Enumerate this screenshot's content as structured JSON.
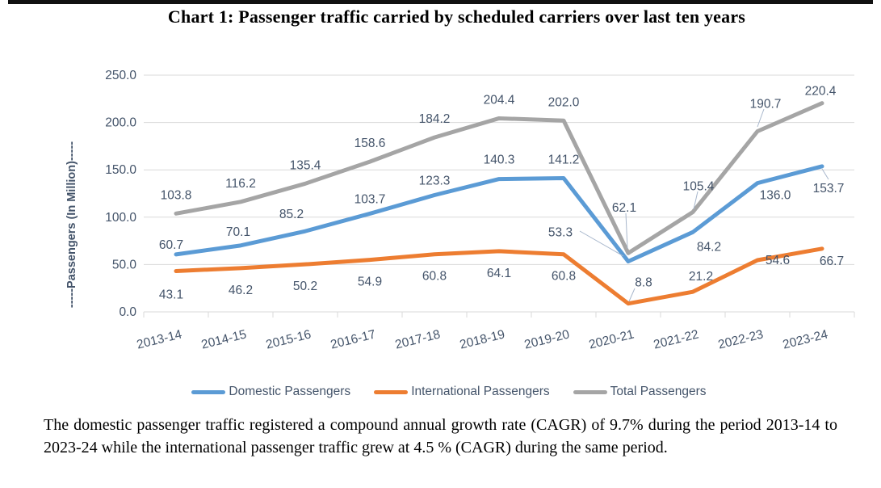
{
  "title": "Chart 1: Passenger traffic carried by scheduled carriers over last ten years",
  "chart_data": {
    "type": "line",
    "categories": [
      "2013-14",
      "2014-15",
      "2015-16",
      "2016-17",
      "2017-18",
      "2018-19",
      "2019-20",
      "2020-21",
      "2021-22",
      "2022-23",
      "2023-24"
    ],
    "series": [
      {
        "name": "Domestic Passengers",
        "color": "#5B9BD5",
        "values": [
          60.7,
          70.1,
          85.2,
          103.7,
          123.3,
          140.3,
          141.2,
          53.3,
          84.2,
          136.0,
          153.7
        ]
      },
      {
        "name": "International Passengers",
        "color": "#ED7D31",
        "values": [
          43.1,
          46.2,
          50.2,
          54.9,
          60.8,
          64.1,
          60.8,
          8.8,
          21.2,
          54.6,
          66.7
        ]
      },
      {
        "name": "Total Passengers",
        "color": "#A5A5A5",
        "values": [
          103.8,
          116.2,
          135.4,
          158.6,
          184.2,
          204.4,
          202.0,
          62.1,
          105.4,
          190.7,
          220.4
        ]
      }
    ],
    "xlabel": "",
    "ylabel": "-----Passengers (In Million)-----",
    "ylim": [
      0,
      250
    ],
    "yticks": [
      250,
      200,
      150,
      100,
      50,
      0
    ],
    "tick_label_decimals": 1,
    "data_label_decimals": 1,
    "grid": "horizontal",
    "legend_position": "bottom",
    "text_color": "#44546A",
    "gridline_color": "#D9D9D9",
    "leader_line_color": "#A8B7CC"
  },
  "caption": "The domestic passenger traffic registered a compound annual growth rate (CAGR) of 9.7% during the period 2013-14 to 2023-24 while the international passenger traffic grew at 4.5 % (CAGR) during the same period."
}
